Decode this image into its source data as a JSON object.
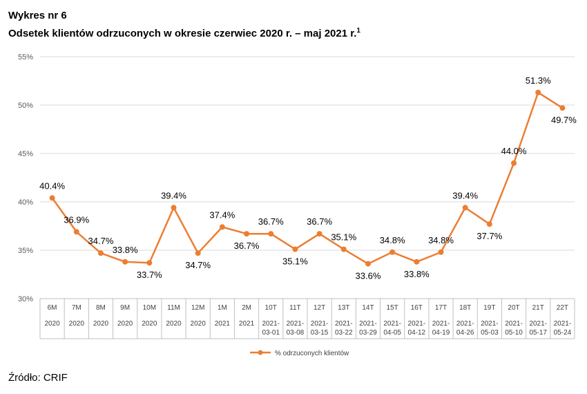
{
  "header": {
    "label": "Wykres nr 6",
    "title": "Odsetek klientów odrzuconych w okresie czerwiec 2020 r. – maj 2021 r.",
    "footnote_mark": "1"
  },
  "source": "Źródło: CRIF",
  "colors": {
    "series": "#ED7D31",
    "grid": "#D9D9D9",
    "axis": "#BFBFBF"
  },
  "chart_data": {
    "type": "line",
    "categories": [
      {
        "top": "6M",
        "bottom": [
          "2020"
        ]
      },
      {
        "top": "7M",
        "bottom": [
          "2020"
        ]
      },
      {
        "top": "8M",
        "bottom": [
          "2020"
        ]
      },
      {
        "top": "9M",
        "bottom": [
          "2020"
        ]
      },
      {
        "top": "10M",
        "bottom": [
          "2020"
        ]
      },
      {
        "top": "11M",
        "bottom": [
          "2020"
        ]
      },
      {
        "top": "12M",
        "bottom": [
          "2020"
        ]
      },
      {
        "top": "1M",
        "bottom": [
          "2021"
        ]
      },
      {
        "top": "2M",
        "bottom": [
          "2021"
        ]
      },
      {
        "top": "10T",
        "bottom": [
          "2021-",
          "03-01"
        ]
      },
      {
        "top": "11T",
        "bottom": [
          "2021-",
          "03-08"
        ]
      },
      {
        "top": "12T",
        "bottom": [
          "2021-",
          "03-15"
        ]
      },
      {
        "top": "13T",
        "bottom": [
          "2021-",
          "03-22"
        ]
      },
      {
        "top": "14T",
        "bottom": [
          "2021-",
          "03-29"
        ]
      },
      {
        "top": "15T",
        "bottom": [
          "2021-",
          "04-05"
        ]
      },
      {
        "top": "16T",
        "bottom": [
          "2021-",
          "04-12"
        ]
      },
      {
        "top": "17T",
        "bottom": [
          "2021-",
          "04-19"
        ]
      },
      {
        "top": "18T",
        "bottom": [
          "2021-",
          "04-26"
        ]
      },
      {
        "top": "19T",
        "bottom": [
          "2021-",
          "05-03"
        ]
      },
      {
        "top": "20T",
        "bottom": [
          "2021-",
          "05-10"
        ]
      },
      {
        "top": "21T",
        "bottom": [
          "2021-",
          "05-17"
        ]
      },
      {
        "top": "22T",
        "bottom": [
          "2021-",
          "05-24"
        ]
      }
    ],
    "series": [
      {
        "name": "% odrzuconych klientów",
        "values": [
          40.4,
          36.9,
          34.7,
          33.8,
          33.7,
          39.4,
          34.7,
          37.4,
          36.7,
          36.7,
          35.1,
          36.7,
          35.1,
          33.6,
          34.8,
          33.8,
          34.8,
          39.4,
          37.7,
          44.0,
          51.3,
          49.7
        ],
        "labels": [
          "40.4%",
          "36.9%",
          "34.7%",
          "33.8%",
          "33.7%",
          "39.4%",
          "34.7%",
          "37.4%",
          "36.7%",
          "36.7%",
          "35.1%",
          "36.7%",
          "35.1%",
          "33.6%",
          "34.8%",
          "33.8%",
          "34.8%",
          "39.4%",
          "37.7%",
          "44.0%",
          "51.3%",
          "49.7%"
        ]
      }
    ],
    "yticks": [
      "30%",
      "35%",
      "40%",
      "45%",
      "50%",
      "55%"
    ],
    "ylim": [
      30,
      55
    ],
    "grid": true,
    "legend": "bottom"
  }
}
